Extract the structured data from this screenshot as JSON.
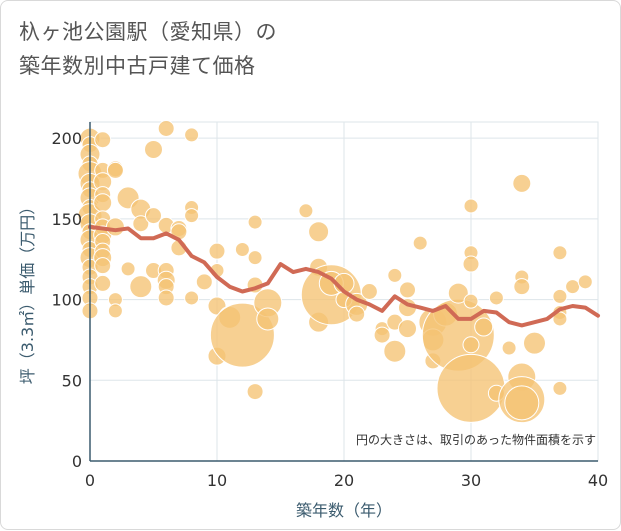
{
  "chart_data": {
    "type": "scatter",
    "title": "杁ヶ池公園駅（愛知県）の\n築年数別中古戸建て価格",
    "xlabel": "築年数（年）",
    "ylabel": "坪（3.3㎡）単価（万円）",
    "xlim": [
      0,
      40
    ],
    "ylim": [
      0,
      210
    ],
    "x_ticks": [
      0,
      10,
      20,
      30,
      40
    ],
    "y_ticks": [
      0,
      50,
      100,
      150,
      200
    ],
    "grid": true,
    "note": "円の大きさは、取引のあった物件面積を示す",
    "colors": {
      "bubble": "#f5c373",
      "bubble_edge": "#ffffff",
      "line": "#d06a55",
      "grid": "#dde5ea",
      "axis": "#3b5b6e"
    },
    "series": [
      {
        "kind": "bubbles",
        "points": [
          [
            0,
            200,
            10
          ],
          [
            0,
            196,
            8
          ],
          [
            0,
            190,
            10
          ],
          [
            0,
            184,
            8
          ],
          [
            0,
            178,
            12
          ],
          [
            0,
            172,
            10
          ],
          [
            0,
            168,
            8
          ],
          [
            0,
            163,
            10
          ],
          [
            0,
            157,
            8
          ],
          [
            0,
            152,
            12
          ],
          [
            0,
            147,
            10
          ],
          [
            0,
            142,
            8
          ],
          [
            0,
            137,
            10
          ],
          [
            0,
            131,
            8
          ],
          [
            0,
            126,
            10
          ],
          [
            0,
            120,
            8
          ],
          [
            0,
            114,
            8
          ],
          [
            0,
            108,
            8
          ],
          [
            0,
            101,
            8
          ],
          [
            0,
            93,
            8
          ],
          [
            1,
            199,
            8
          ],
          [
            1,
            180,
            8
          ],
          [
            1,
            173,
            9
          ],
          [
            1,
            165,
            8
          ],
          [
            1,
            160,
            9
          ],
          [
            1,
            150,
            8
          ],
          [
            1,
            145,
            8
          ],
          [
            1,
            140,
            9
          ],
          [
            1,
            136,
            8
          ],
          [
            1,
            130,
            8
          ],
          [
            1,
            126,
            9
          ],
          [
            1,
            121,
            8
          ],
          [
            1,
            110,
            8
          ],
          [
            2,
            181,
            8
          ],
          [
            2,
            180,
            8
          ],
          [
            2,
            145,
            9
          ],
          [
            2,
            100,
            7
          ],
          [
            2,
            93,
            7
          ],
          [
            3,
            163,
            11
          ],
          [
            3,
            119,
            7
          ],
          [
            4,
            156,
            10
          ],
          [
            4,
            147,
            8
          ],
          [
            4,
            108,
            11
          ],
          [
            5,
            193,
            9
          ],
          [
            5,
            152,
            8
          ],
          [
            5,
            118,
            8
          ],
          [
            6,
            206,
            8
          ],
          [
            6,
            146,
            8
          ],
          [
            6,
            118,
            8
          ],
          [
            6,
            112,
            9
          ],
          [
            6,
            108,
            8
          ],
          [
            6,
            101,
            8
          ],
          [
            7,
            144,
            8
          ],
          [
            7,
            142,
            8
          ],
          [
            7,
            132,
            8
          ],
          [
            8,
            202,
            7
          ],
          [
            8,
            157,
            7
          ],
          [
            8,
            152,
            7
          ],
          [
            8,
            101,
            7
          ],
          [
            9,
            111,
            8
          ],
          [
            10,
            130,
            8
          ],
          [
            10,
            118,
            7
          ],
          [
            10,
            96,
            9
          ],
          [
            10,
            65,
            9
          ],
          [
            11,
            89,
            11
          ],
          [
            12,
            131,
            7
          ],
          [
            12,
            78,
            32
          ],
          [
            13,
            148,
            7
          ],
          [
            13,
            126,
            7
          ],
          [
            13,
            109,
            8
          ],
          [
            13,
            43,
            8
          ],
          [
            14,
            98,
            14
          ],
          [
            14,
            88,
            11
          ],
          [
            17,
            155,
            7
          ],
          [
            18,
            142,
            10
          ],
          [
            18,
            120,
            9
          ],
          [
            18,
            86,
            10
          ],
          [
            19,
            103,
            30
          ],
          [
            19,
            110,
            12
          ],
          [
            20,
            110,
            10
          ],
          [
            20,
            100,
            8
          ],
          [
            21,
            97,
            11
          ],
          [
            21,
            91,
            8
          ],
          [
            22,
            105,
            8
          ],
          [
            23,
            82,
            7
          ],
          [
            23,
            78,
            8
          ],
          [
            24,
            115,
            7
          ],
          [
            24,
            86,
            8
          ],
          [
            24,
            68,
            11
          ],
          [
            25,
            106,
            8
          ],
          [
            25,
            95,
            9
          ],
          [
            25,
            82,
            9
          ],
          [
            26,
            135,
            7
          ],
          [
            27,
            86,
            14
          ],
          [
            27,
            75,
            11
          ],
          [
            27,
            62,
            8
          ],
          [
            28,
            91,
            12
          ],
          [
            29,
            78,
            36
          ],
          [
            29,
            104,
            10
          ],
          [
            30,
            158,
            7
          ],
          [
            30,
            129,
            7
          ],
          [
            30,
            122,
            8
          ],
          [
            30,
            99,
            7
          ],
          [
            30,
            72,
            8
          ],
          [
            30,
            45,
            34
          ],
          [
            31,
            83,
            9
          ],
          [
            32,
            101,
            7
          ],
          [
            32,
            42,
            8
          ],
          [
            33,
            70,
            7
          ],
          [
            34,
            172,
            9
          ],
          [
            34,
            114,
            7
          ],
          [
            34,
            108,
            8
          ],
          [
            34,
            52,
            14
          ],
          [
            34,
            38,
            23
          ],
          [
            34,
            36,
            17
          ],
          [
            35,
            73,
            11
          ],
          [
            37,
            129,
            7
          ],
          [
            37,
            102,
            7
          ],
          [
            37,
            92,
            7
          ],
          [
            37,
            88,
            7
          ],
          [
            37,
            45,
            7
          ],
          [
            38,
            108,
            7
          ],
          [
            39,
            111,
            7
          ]
        ]
      },
      {
        "kind": "line",
        "name": "",
        "x": [
          0,
          1,
          2,
          3,
          4,
          5,
          6,
          7,
          8,
          9,
          10,
          11,
          12,
          13,
          14,
          15,
          16,
          17,
          18,
          19,
          20,
          21,
          22,
          23,
          24,
          25,
          26,
          27,
          28,
          29,
          30,
          31,
          32,
          33,
          34,
          35,
          36,
          37,
          38,
          39,
          40
        ],
        "y": [
          145,
          144,
          143,
          144,
          138,
          138,
          141,
          137,
          127,
          123,
          114,
          108,
          105,
          107,
          110,
          122,
          117,
          119,
          117,
          113,
          105,
          100,
          97,
          93,
          102,
          97,
          95,
          93,
          96,
          88,
          88,
          93,
          92,
          86,
          84,
          86,
          88,
          94,
          96,
          95,
          90
        ]
      }
    ]
  }
}
